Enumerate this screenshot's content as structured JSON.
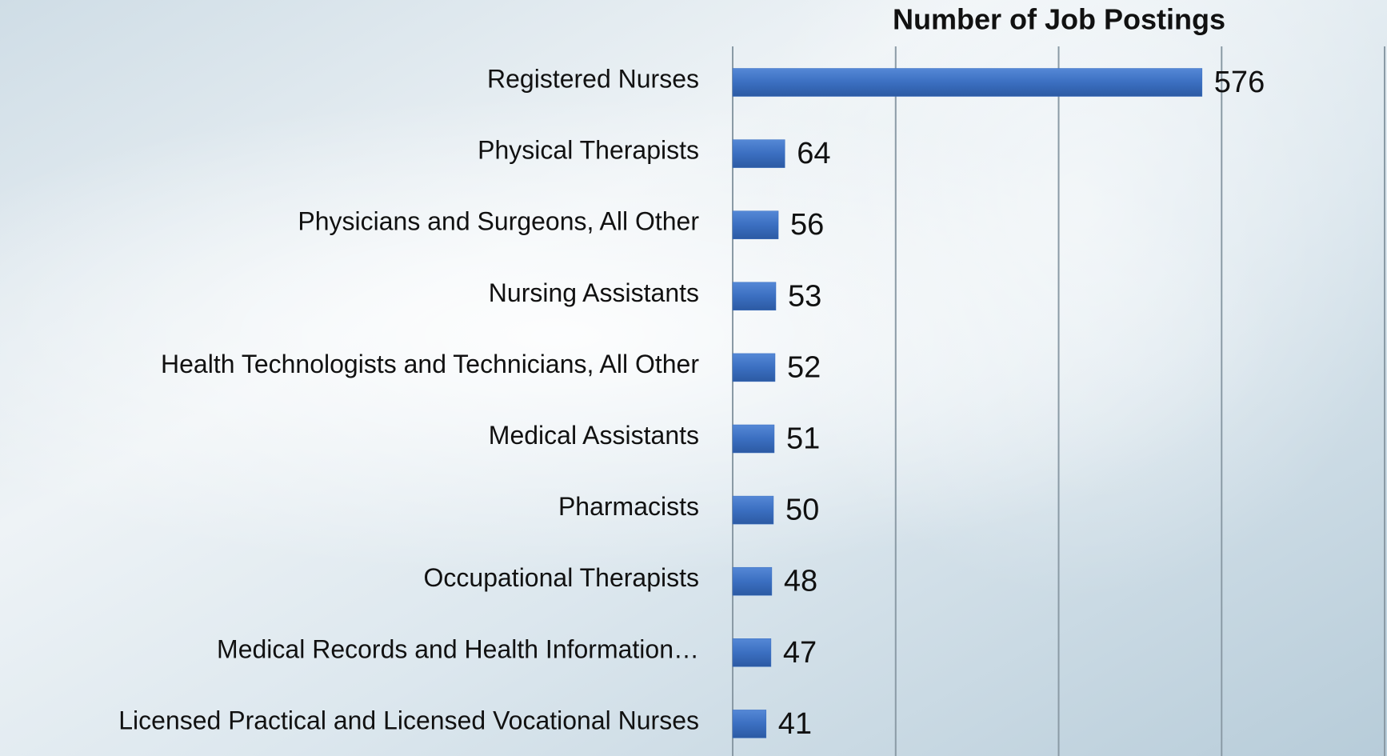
{
  "chart_data": {
    "type": "hbar",
    "title": "Number of Job Postings",
    "categories": [
      "Registered Nurses",
      "Physical Therapists",
      "Physicians and Surgeons, All Other",
      "Nursing Assistants",
      "Health Technologists and Technicians, All Other",
      "Medical Assistants",
      "Pharmacists",
      "Occupational Therapists",
      "Medical Records and Health Information…",
      "Licensed Practical and Licensed Vocational Nurses"
    ],
    "values": [
      576,
      64,
      56,
      53,
      52,
      51,
      50,
      48,
      47,
      41
    ],
    "color": "#3b6fc1",
    "xlim": [
      0,
      800
    ],
    "xticks": [
      0,
      200,
      400,
      600,
      800
    ],
    "grid": true
  }
}
